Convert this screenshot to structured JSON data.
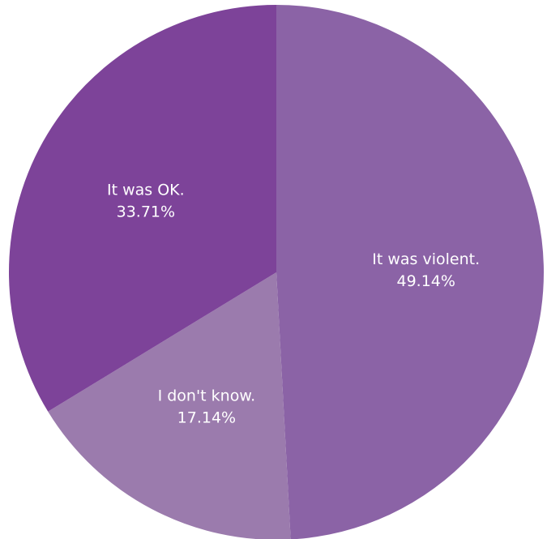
{
  "chart_data": {
    "type": "pie",
    "start_angle_deg": 0,
    "direction": "clockwise",
    "slices": [
      {
        "label": "It was violent.",
        "value": 49.14,
        "value_label": "49.14%",
        "color": "#8b63a6"
      },
      {
        "label": "I don't know.",
        "value": 17.14,
        "value_label": "17.14%",
        "color": "#9b7bad"
      },
      {
        "label": "It was OK.",
        "value": 33.71,
        "value_label": "33.71%",
        "color": "#7d4399"
      }
    ]
  }
}
